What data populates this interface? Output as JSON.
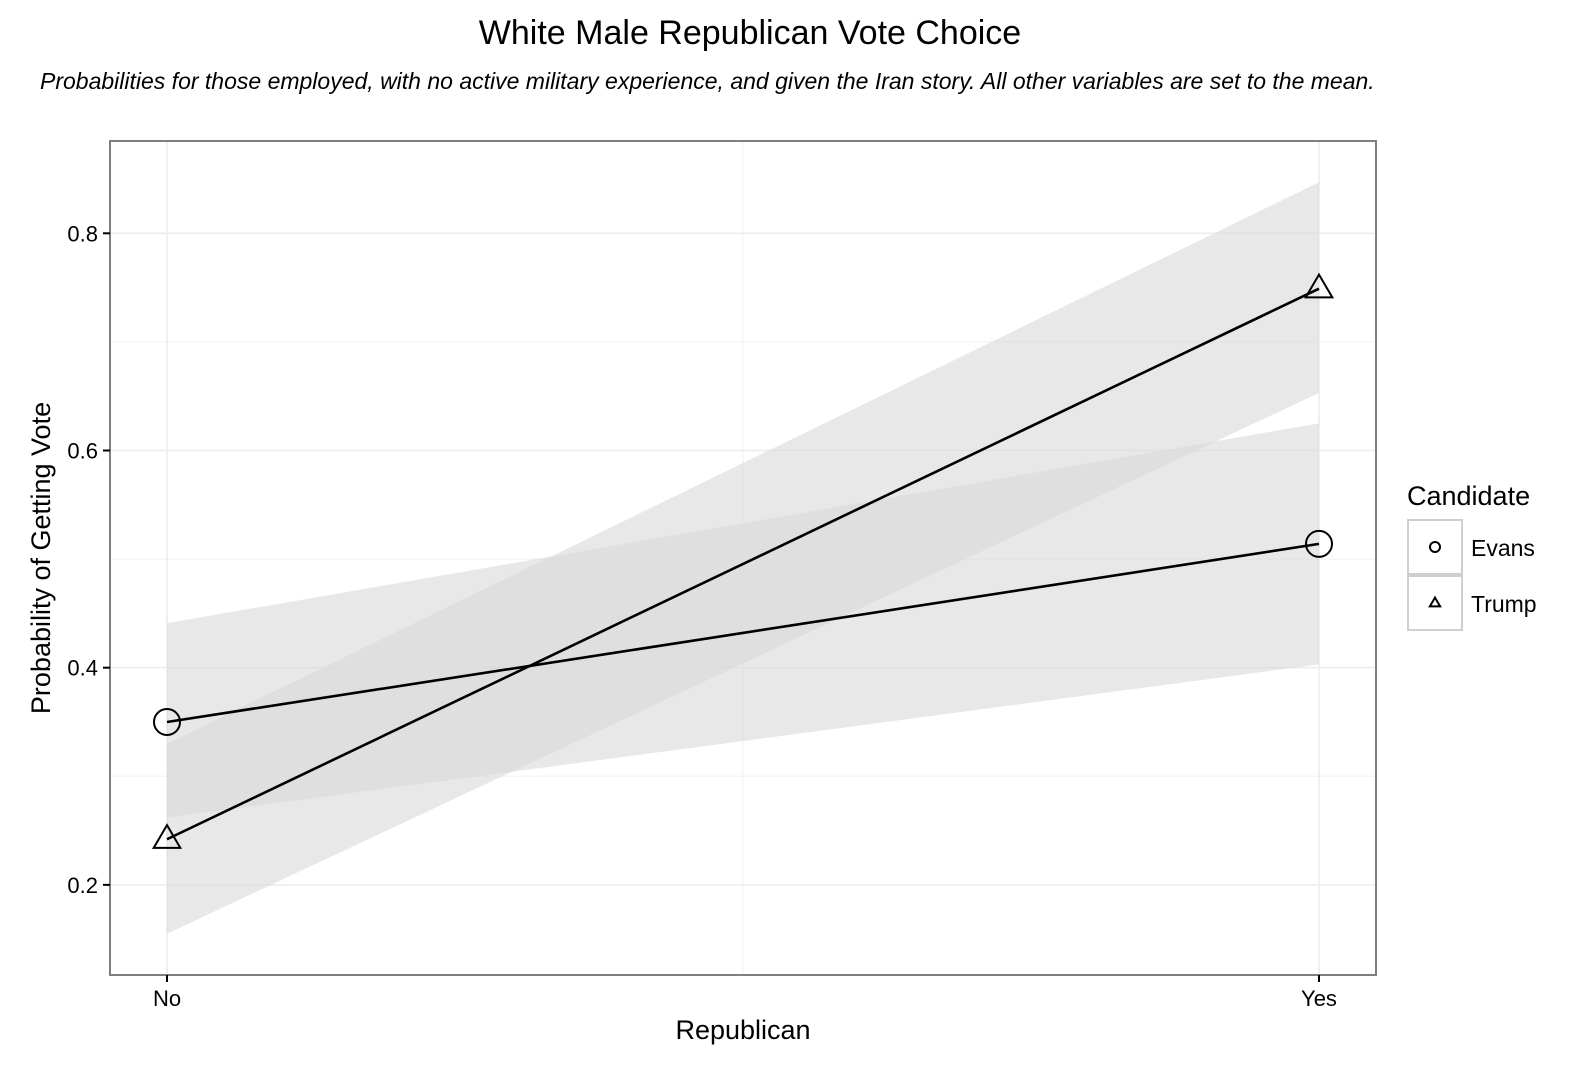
{
  "title": "White Male Republican Vote Choice",
  "subtitle": "Probabilities for those employed, with no active military experience, and given the Iran story. All other variables are set to the mean.",
  "chart_data": {
    "type": "line",
    "title": "White Male Republican Vote Choice",
    "subtitle": "Probabilities for those employed, with no active military experience, and given the Iran story. All other variables are set to the mean.",
    "xlabel": "Republican",
    "ylabel": "Probability of Getting Vote",
    "categories": [
      "No",
      "Yes"
    ],
    "yticks": [
      0.2,
      0.4,
      0.6,
      0.8
    ],
    "ylim": [
      0.117,
      0.885
    ],
    "grid": true,
    "legend": {
      "title": "Candidate",
      "placement": "right"
    },
    "series": [
      {
        "name": "Evans",
        "marker": "circle",
        "values": [
          0.35,
          0.514
        ],
        "ci_lower": [
          0.262,
          0.403
        ],
        "ci_upper": [
          0.441,
          0.625
        ]
      },
      {
        "name": "Trump",
        "marker": "triangle",
        "values": [
          0.242,
          0.749
        ],
        "ci_lower": [
          0.155,
          0.653
        ],
        "ci_upper": [
          0.33,
          0.847
        ]
      }
    ],
    "colors": {
      "line": "#000000",
      "ribbon": "#d9d9d9",
      "grid": "#ebebeb",
      "panel_border": "#7f7f7f"
    }
  }
}
